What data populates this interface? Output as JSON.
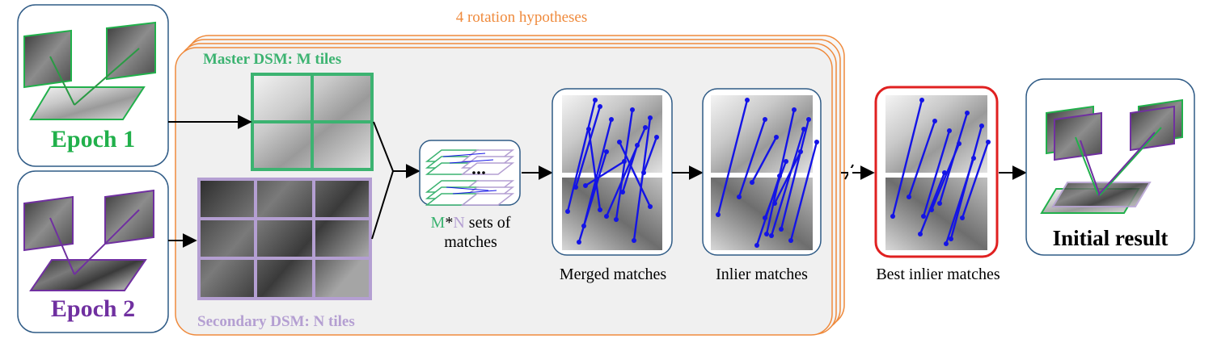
{
  "rotation": {
    "label": "4 rotation hypotheses",
    "color": "#ef8a3c"
  },
  "epochs": [
    {
      "label": "Epoch 1",
      "color": "#21b04b"
    },
    {
      "label": "Epoch 2",
      "color": "#7030a0"
    }
  ],
  "master_dsm": {
    "label": "Master DSM: M tiles",
    "color": "#3cb371",
    "tiles_grid": "2x2"
  },
  "secondary_dsm": {
    "label": "Secondary DSM: N tiles",
    "color": "#b49fd2",
    "tiles_grid": "3x3"
  },
  "match_sets": {
    "line1_m": "M",
    "line1_star": "*",
    "line1_n": "N",
    "line1_rest": " sets of",
    "line2": "matches"
  },
  "stages": {
    "merged": "Merged matches",
    "inlier": "Inlier matches",
    "best": "Best inlier matches",
    "result": "Initial result"
  },
  "colors": {
    "panel_border": "#2f5b86",
    "match_line": "#1414e6",
    "best_border": "#e02020",
    "background_panel": "#f0f0f0"
  },
  "icons": [
    "satellite-image-icon",
    "dsm-tile-icon",
    "match-line-icon",
    "arrow-icon"
  ]
}
